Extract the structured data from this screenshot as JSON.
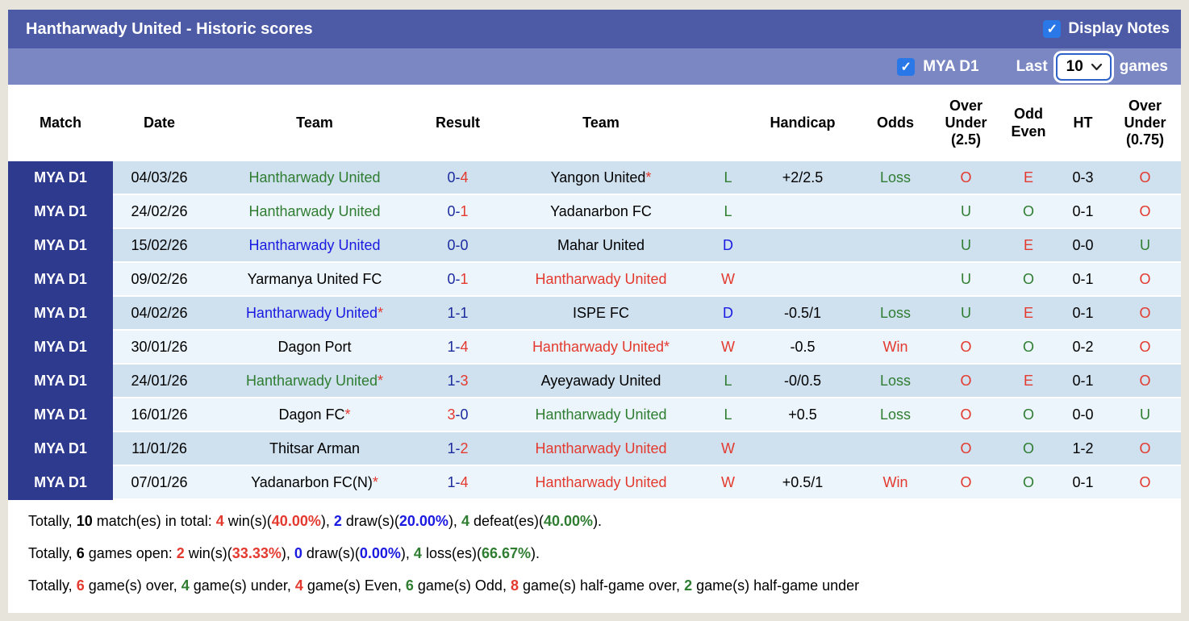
{
  "colors": {
    "red": "#e3392e",
    "green": "#2e7d31",
    "blue": "#1a1ae0",
    "navy": "#1c2b9e",
    "black": "#000000",
    "topbar_bg": "#4d5ba7",
    "filterbar_bg": "#7b87c2",
    "league_cell_bg": "#2d3a8e",
    "row_odd_bg": "#cfe1ef",
    "row_even_bg": "#ecf5fb",
    "checkbox_bg": "#2a78e8"
  },
  "header": {
    "title": "Hantharwady United - Historic scores",
    "display_notes_label": "Display Notes",
    "display_notes_checked": true,
    "checkmark": "✓"
  },
  "filter_bar": {
    "league_label": "MYA D1",
    "league_checked": true,
    "last_label": "Last",
    "selected_count": "10",
    "games_label": "games",
    "checkmark": "✓"
  },
  "table": {
    "columns": [
      {
        "label": "Match",
        "key": "league"
      },
      {
        "label": "Date",
        "key": "date"
      },
      {
        "label": "Team",
        "key": "team"
      },
      {
        "label": "Result",
        "key": "result"
      },
      {
        "label": "Team",
        "key": "team2"
      },
      {
        "label": "",
        "key": "wdl"
      },
      {
        "label": "Handicap",
        "key": "handicap"
      },
      {
        "label": "Odds",
        "key": "odds"
      },
      {
        "label": "Over Under (2.5)",
        "key": "ou25"
      },
      {
        "label": "Odd Even",
        "key": "oe"
      },
      {
        "label": "HT",
        "key": "ht"
      },
      {
        "label": "Over Under (0.75)",
        "key": "ou075"
      }
    ],
    "rows": [
      {
        "league": "MYA D1",
        "date": "04/03/26",
        "home": {
          "name": "Hantharwady United",
          "c": "green",
          "star": false
        },
        "result": [
          {
            "t": "0-",
            "c": "navy"
          },
          {
            "t": "4",
            "c": "red"
          }
        ],
        "away": {
          "name": "Yangon United",
          "c": "black",
          "star": true
        },
        "wdl": {
          "t": "L",
          "c": "green"
        },
        "handicap": "+2/2.5",
        "odds": {
          "t": "Loss",
          "c": "green"
        },
        "ou25": {
          "t": "O",
          "c": "red"
        },
        "oe": {
          "t": "E",
          "c": "red"
        },
        "ht": "0-3",
        "ou075": {
          "t": "O",
          "c": "red"
        }
      },
      {
        "league": "MYA D1",
        "date": "24/02/26",
        "home": {
          "name": "Hantharwady United",
          "c": "green",
          "star": false
        },
        "result": [
          {
            "t": "0-",
            "c": "navy"
          },
          {
            "t": "1",
            "c": "red"
          }
        ],
        "away": {
          "name": "Yadanarbon FC",
          "c": "black",
          "star": false
        },
        "wdl": {
          "t": "L",
          "c": "green"
        },
        "handicap": "",
        "odds": {
          "t": "",
          "c": "black"
        },
        "ou25": {
          "t": "U",
          "c": "green"
        },
        "oe": {
          "t": "O",
          "c": "green"
        },
        "ht": "0-1",
        "ou075": {
          "t": "O",
          "c": "red"
        }
      },
      {
        "league": "MYA D1",
        "date": "15/02/26",
        "home": {
          "name": "Hantharwady United",
          "c": "blue",
          "star": false
        },
        "result": [
          {
            "t": "0-0",
            "c": "navy"
          }
        ],
        "away": {
          "name": "Mahar United",
          "c": "black",
          "star": false
        },
        "wdl": {
          "t": "D",
          "c": "blue"
        },
        "handicap": "",
        "odds": {
          "t": "",
          "c": "black"
        },
        "ou25": {
          "t": "U",
          "c": "green"
        },
        "oe": {
          "t": "E",
          "c": "red"
        },
        "ht": "0-0",
        "ou075": {
          "t": "U",
          "c": "green"
        }
      },
      {
        "league": "MYA D1",
        "date": "09/02/26",
        "home": {
          "name": "Yarmanya United FC",
          "c": "black",
          "star": false
        },
        "result": [
          {
            "t": "0-",
            "c": "navy"
          },
          {
            "t": "1",
            "c": "red"
          }
        ],
        "away": {
          "name": "Hantharwady United",
          "c": "red",
          "star": false
        },
        "wdl": {
          "t": "W",
          "c": "red"
        },
        "handicap": "",
        "odds": {
          "t": "",
          "c": "black"
        },
        "ou25": {
          "t": "U",
          "c": "green"
        },
        "oe": {
          "t": "O",
          "c": "green"
        },
        "ht": "0-1",
        "ou075": {
          "t": "O",
          "c": "red"
        }
      },
      {
        "league": "MYA D1",
        "date": "04/02/26",
        "home": {
          "name": "Hantharwady United",
          "c": "blue",
          "star": true
        },
        "result": [
          {
            "t": "1-1",
            "c": "navy"
          }
        ],
        "away": {
          "name": "ISPE FC",
          "c": "black",
          "star": false
        },
        "wdl": {
          "t": "D",
          "c": "blue"
        },
        "handicap": "-0.5/1",
        "odds": {
          "t": "Loss",
          "c": "green"
        },
        "ou25": {
          "t": "U",
          "c": "green"
        },
        "oe": {
          "t": "E",
          "c": "red"
        },
        "ht": "0-1",
        "ou075": {
          "t": "O",
          "c": "red"
        }
      },
      {
        "league": "MYA D1",
        "date": "30/01/26",
        "home": {
          "name": "Dagon Port",
          "c": "black",
          "star": false
        },
        "result": [
          {
            "t": "1-",
            "c": "navy"
          },
          {
            "t": "4",
            "c": "red"
          }
        ],
        "away": {
          "name": "Hantharwady United",
          "c": "red",
          "star": true
        },
        "wdl": {
          "t": "W",
          "c": "red"
        },
        "handicap": "-0.5",
        "odds": {
          "t": "Win",
          "c": "red"
        },
        "ou25": {
          "t": "O",
          "c": "red"
        },
        "oe": {
          "t": "O",
          "c": "green"
        },
        "ht": "0-2",
        "ou075": {
          "t": "O",
          "c": "red"
        }
      },
      {
        "league": "MYA D1",
        "date": "24/01/26",
        "home": {
          "name": "Hantharwady United",
          "c": "green",
          "star": true
        },
        "result": [
          {
            "t": "1-",
            "c": "navy"
          },
          {
            "t": "3",
            "c": "red"
          }
        ],
        "away": {
          "name": "Ayeyawady United",
          "c": "black",
          "star": false
        },
        "wdl": {
          "t": "L",
          "c": "green"
        },
        "handicap": "-0/0.5",
        "odds": {
          "t": "Loss",
          "c": "green"
        },
        "ou25": {
          "t": "O",
          "c": "red"
        },
        "oe": {
          "t": "E",
          "c": "red"
        },
        "ht": "0-1",
        "ou075": {
          "t": "O",
          "c": "red"
        }
      },
      {
        "league": "MYA D1",
        "date": "16/01/26",
        "home": {
          "name": "Dagon FC",
          "c": "black",
          "star": true
        },
        "result": [
          {
            "t": "3",
            "c": "red"
          },
          {
            "t": "-0",
            "c": "navy"
          }
        ],
        "away": {
          "name": "Hantharwady United",
          "c": "green",
          "star": false
        },
        "wdl": {
          "t": "L",
          "c": "green"
        },
        "handicap": "+0.5",
        "odds": {
          "t": "Loss",
          "c": "green"
        },
        "ou25": {
          "t": "O",
          "c": "red"
        },
        "oe": {
          "t": "O",
          "c": "green"
        },
        "ht": "0-0",
        "ou075": {
          "t": "U",
          "c": "green"
        }
      },
      {
        "league": "MYA D1",
        "date": "11/01/26",
        "home": {
          "name": "Thitsar Arman",
          "c": "black",
          "star": false
        },
        "result": [
          {
            "t": "1-",
            "c": "navy"
          },
          {
            "t": "2",
            "c": "red"
          }
        ],
        "away": {
          "name": "Hantharwady United",
          "c": "red",
          "star": false
        },
        "wdl": {
          "t": "W",
          "c": "red"
        },
        "handicap": "",
        "odds": {
          "t": "",
          "c": "black"
        },
        "ou25": {
          "t": "O",
          "c": "red"
        },
        "oe": {
          "t": "O",
          "c": "green"
        },
        "ht": "1-2",
        "ou075": {
          "t": "O",
          "c": "red"
        }
      },
      {
        "league": "MYA D1",
        "date": "07/01/26",
        "home": {
          "name": "Yadanarbon FC(N)",
          "c": "black",
          "star": true
        },
        "result": [
          {
            "t": "1-",
            "c": "navy"
          },
          {
            "t": "4",
            "c": "red"
          }
        ],
        "away": {
          "name": "Hantharwady United",
          "c": "red",
          "star": false
        },
        "wdl": {
          "t": "W",
          "c": "red"
        },
        "handicap": "+0.5/1",
        "odds": {
          "t": "Win",
          "c": "red"
        },
        "ou25": {
          "t": "O",
          "c": "red"
        },
        "oe": {
          "t": "O",
          "c": "green"
        },
        "ht": "0-1",
        "ou075": {
          "t": "O",
          "c": "red"
        }
      }
    ]
  },
  "summary": {
    "lines": [
      [
        {
          "t": "Totally, "
        },
        {
          "t": "10",
          "b": true
        },
        {
          "t": " match(es) in total: "
        },
        {
          "t": "4",
          "b": true,
          "c": "red"
        },
        {
          "t": " win(s)("
        },
        {
          "t": "40.00%",
          "b": true,
          "c": "red"
        },
        {
          "t": "), "
        },
        {
          "t": "2",
          "b": true,
          "c": "blue"
        },
        {
          "t": " draw(s)("
        },
        {
          "t": "20.00%",
          "b": true,
          "c": "blue"
        },
        {
          "t": "), "
        },
        {
          "t": "4",
          "b": true,
          "c": "green"
        },
        {
          "t": " defeat(es)("
        },
        {
          "t": "40.00%",
          "b": true,
          "c": "green"
        },
        {
          "t": ")."
        }
      ],
      [
        {
          "t": "Totally, "
        },
        {
          "t": "6",
          "b": true
        },
        {
          "t": " games open: "
        },
        {
          "t": "2",
          "b": true,
          "c": "red"
        },
        {
          "t": " win(s)("
        },
        {
          "t": "33.33%",
          "b": true,
          "c": "red"
        },
        {
          "t": "), "
        },
        {
          "t": "0",
          "b": true,
          "c": "blue"
        },
        {
          "t": " draw(s)("
        },
        {
          "t": "0.00%",
          "b": true,
          "c": "blue"
        },
        {
          "t": "), "
        },
        {
          "t": "4",
          "b": true,
          "c": "green"
        },
        {
          "t": " loss(es)("
        },
        {
          "t": "66.67%",
          "b": true,
          "c": "green"
        },
        {
          "t": ")."
        }
      ],
      [
        {
          "t": "Totally, "
        },
        {
          "t": "6",
          "b": true,
          "c": "red"
        },
        {
          "t": " game(s) over, "
        },
        {
          "t": "4",
          "b": true,
          "c": "green"
        },
        {
          "t": " game(s) under, "
        },
        {
          "t": "4",
          "b": true,
          "c": "red"
        },
        {
          "t": " game(s) Even, "
        },
        {
          "t": "6",
          "b": true,
          "c": "green"
        },
        {
          "t": " game(s) Odd, "
        },
        {
          "t": "8",
          "b": true,
          "c": "red"
        },
        {
          "t": " game(s) half-game over, "
        },
        {
          "t": "2",
          "b": true,
          "c": "green"
        },
        {
          "t": " game(s) half-game under"
        }
      ]
    ]
  }
}
